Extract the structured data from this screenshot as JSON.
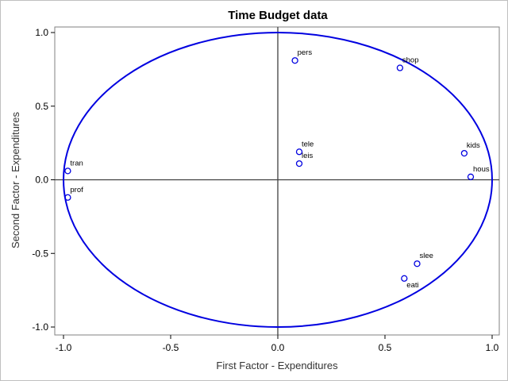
{
  "chart_data": {
    "type": "scatter",
    "title": "Time Budget data",
    "xlabel": "First Factor - Expenditures",
    "ylabel": "Second Factor - Expenditures",
    "xlim": [
      -1.0,
      1.0
    ],
    "ylim": [
      -1.0,
      1.0
    ],
    "xticks": [
      "-1.0",
      "-0.5",
      "0.0",
      "0.5",
      "1.0"
    ],
    "yticks": [
      "-1.0",
      "-0.5",
      "0.0",
      "0.5",
      "1.0"
    ],
    "reference_circle": {
      "radius": 1.0,
      "color": "#0000e0"
    },
    "reference_lines": {
      "x": 0,
      "y": 0
    },
    "grid": false,
    "legend": "none",
    "marker_color": "#0000e0",
    "points": [
      {
        "label": "pers",
        "x": 0.08,
        "y": 0.81
      },
      {
        "label": "shop",
        "x": 0.57,
        "y": 0.76
      },
      {
        "label": "tele",
        "x": 0.1,
        "y": 0.19
      },
      {
        "label": "leis",
        "x": 0.1,
        "y": 0.11
      },
      {
        "label": "kids",
        "x": 0.87,
        "y": 0.18
      },
      {
        "label": "hous",
        "x": 0.9,
        "y": 0.02
      },
      {
        "label": "tran",
        "x": -0.98,
        "y": 0.06
      },
      {
        "label": "prof",
        "x": -0.98,
        "y": -0.12
      },
      {
        "label": "slee",
        "x": 0.65,
        "y": -0.57
      },
      {
        "label": "eati",
        "x": 0.59,
        "y": -0.67
      }
    ]
  }
}
